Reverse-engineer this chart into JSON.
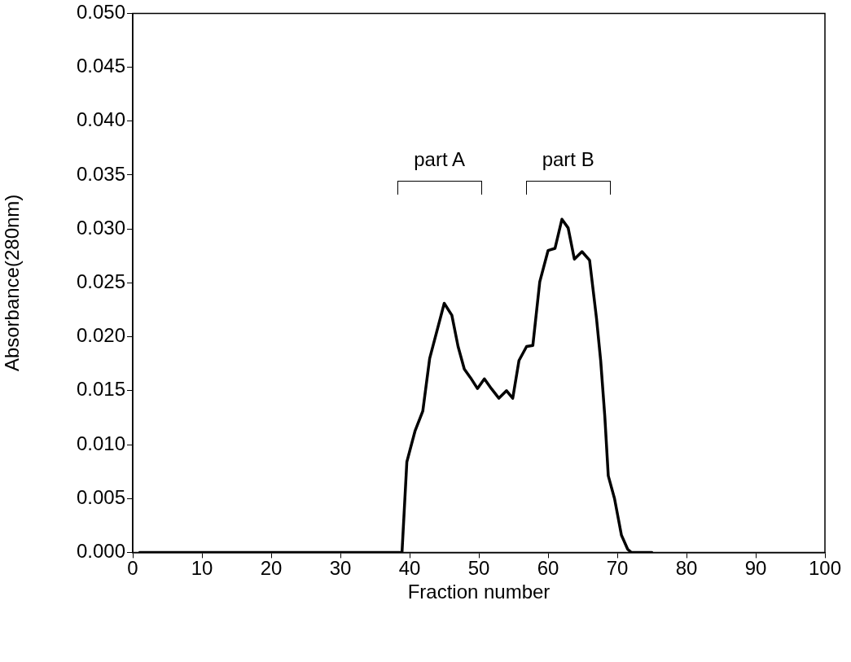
{
  "chart_data": {
    "type": "line",
    "xlabel": "Fraction number",
    "ylabel": "Absorbance(280nm)",
    "x": [
      1,
      38.9,
      39.6,
      40.8,
      41.9,
      42.9,
      45,
      46.1,
      47,
      47.9,
      48.8,
      49.8,
      50.8,
      51.8,
      52.9,
      54,
      54.9,
      55.8,
      56.9,
      57.8,
      58.8,
      60,
      61,
      62,
      62.9,
      63.8,
      64.9,
      66,
      67,
      67.6,
      68.2,
      68.7,
      69.6,
      70.6,
      71.5,
      72,
      75
    ],
    "series": [
      {
        "color": "#000000",
        "values": [
          0,
          0,
          0.0084,
          0.0113,
          0.0131,
          0.018,
          0.0231,
          0.022,
          0.0191,
          0.017,
          0.0162,
          0.0152,
          0.0161,
          0.0152,
          0.0143,
          0.015,
          0.0143,
          0.0178,
          0.0191,
          0.0192,
          0.0251,
          0.028,
          0.0282,
          0.0309,
          0.0301,
          0.0272,
          0.0279,
          0.0271,
          0.0217,
          0.0178,
          0.0126,
          0.0071,
          0.005,
          0.0016,
          0.0003,
          0,
          0
        ]
      }
    ],
    "xlim": [
      0,
      100
    ],
    "xticks": [
      0,
      10,
      20,
      30,
      40,
      50,
      60,
      70,
      80,
      90,
      100
    ],
    "ylim": [
      0,
      0.05
    ],
    "yticks": [
      {
        "value": 0,
        "label": "0.000"
      },
      {
        "value": 0.005,
        "label": "0.005"
      },
      {
        "value": 0.01,
        "label": "0.010"
      },
      {
        "value": 0.015,
        "label": "0.015"
      },
      {
        "value": 0.02,
        "label": "0.020"
      },
      {
        "value": 0.025,
        "label": "0.025"
      },
      {
        "value": 0.03,
        "label": "0.030"
      },
      {
        "value": 0.035,
        "label": "0.035"
      },
      {
        "value": 0.04,
        "label": "0.040"
      },
      {
        "value": 0.045,
        "label": "0.045"
      },
      {
        "value": 0.05,
        "label": "0.050"
      }
    ],
    "annotations": [
      "part A",
      "part B"
    ],
    "grid": false,
    "legend": false,
    "marker": "none",
    "line_style": "solid"
  }
}
